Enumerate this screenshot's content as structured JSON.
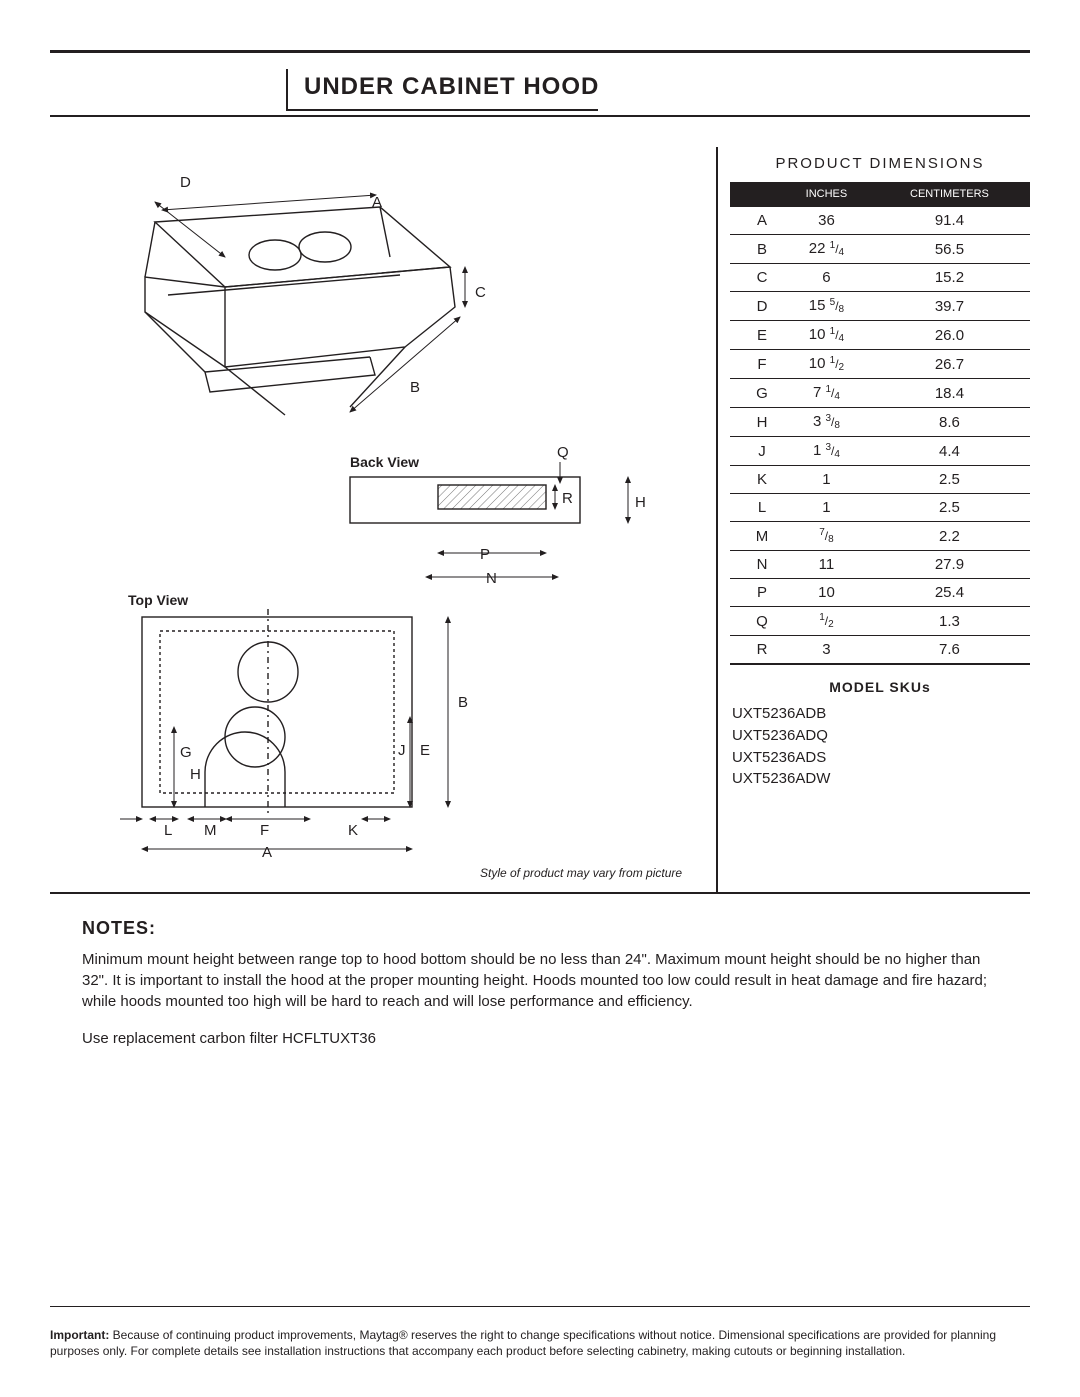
{
  "title": "UNDER CABINET HOOD",
  "product_dimensions": {
    "heading": "PRODUCT DIMENSIONS",
    "columns": {
      "label": "",
      "inches": "INCHES",
      "cm": "CENTIMETERS"
    },
    "rows": [
      {
        "label": "A",
        "inches_int": "36",
        "inches_num": "",
        "inches_den": "",
        "cm": "91.4"
      },
      {
        "label": "B",
        "inches_int": "22",
        "inches_num": "1",
        "inches_den": "4",
        "cm": "56.5"
      },
      {
        "label": "C",
        "inches_int": "6",
        "inches_num": "",
        "inches_den": "",
        "cm": "15.2"
      },
      {
        "label": "D",
        "inches_int": "15",
        "inches_num": "5",
        "inches_den": "8",
        "cm": "39.7"
      },
      {
        "label": "E",
        "inches_int": "10",
        "inches_num": "1",
        "inches_den": "4",
        "cm": "26.0"
      },
      {
        "label": "F",
        "inches_int": "10",
        "inches_num": "1",
        "inches_den": "2",
        "cm": "26.7"
      },
      {
        "label": "G",
        "inches_int": "7",
        "inches_num": "1",
        "inches_den": "4",
        "cm": "18.4"
      },
      {
        "label": "H",
        "inches_int": "3",
        "inches_num": "3",
        "inches_den": "8",
        "cm": "8.6"
      },
      {
        "label": "J",
        "inches_int": "1",
        "inches_num": "3",
        "inches_den": "4",
        "cm": "4.4"
      },
      {
        "label": "K",
        "inches_int": "1",
        "inches_num": "",
        "inches_den": "",
        "cm": "2.5"
      },
      {
        "label": "L",
        "inches_int": "1",
        "inches_num": "",
        "inches_den": "",
        "cm": "2.5"
      },
      {
        "label": "M",
        "inches_int": "",
        "inches_num": "7",
        "inches_den": "8",
        "cm": "2.2"
      },
      {
        "label": "N",
        "inches_int": "11",
        "inches_num": "",
        "inches_den": "",
        "cm": "27.9"
      },
      {
        "label": "P",
        "inches_int": "10",
        "inches_num": "",
        "inches_den": "",
        "cm": "25.4"
      },
      {
        "label": "Q",
        "inches_int": "",
        "inches_num": "1",
        "inches_den": "2",
        "cm": "1.3"
      },
      {
        "label": "R",
        "inches_int": "3",
        "inches_num": "",
        "inches_den": "",
        "cm": "7.6"
      }
    ]
  },
  "model_skus": {
    "heading": "MODEL SKUs",
    "items": [
      "UXT5236ADB",
      "UXT5236ADQ",
      "UXT5236ADS",
      "UXT5236ADW"
    ]
  },
  "diagram": {
    "back_view_label": "Back View",
    "top_view_label": "Top View",
    "labels": {
      "A": "A",
      "B": "B",
      "C": "C",
      "D": "D",
      "E": "E",
      "F": "F",
      "G": "G",
      "H": "H",
      "J": "J",
      "K": "K",
      "L": "L",
      "M": "M",
      "N": "N",
      "P": "P",
      "Q": "Q",
      "R": "R"
    },
    "caption": "Style of product may vary from picture",
    "colors": {
      "line": "#231f20",
      "hatch": "#777777",
      "bg": "#ffffff"
    }
  },
  "notes": {
    "heading": "NOTES:",
    "paragraphs": [
      "Minimum mount height between range top to hood bottom should be no less than 24\".  Maximum mount height should be no higher than 32\".  It is important to install the hood at the proper mounting height.  Hoods mounted too low could result in heat damage and fire hazard; while hoods mounted too high will be hard to reach and will lose performance and efficiency.",
      "Use replacement carbon filter HCFLTUXT36"
    ]
  },
  "footer": {
    "important_label": "Important:",
    "important_text": "Because of continuing product improvements, Maytag® reserves the right to change specifications without notice. Dimensional specifications are provided for planning purposes only. For complete details see installation instructions that accompany each product before selecting cabinetry, making cutouts or beginning installation."
  }
}
